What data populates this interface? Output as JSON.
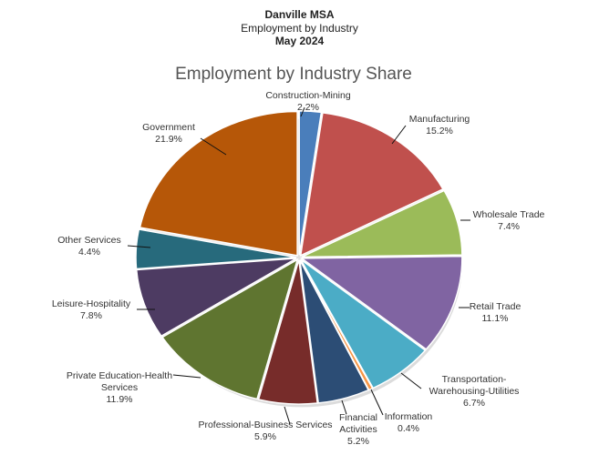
{
  "header": {
    "line1": "Danville MSA",
    "line2": "Employment by Industry",
    "line3": "May 2024"
  },
  "chart_data": {
    "type": "pie",
    "title": "Employment by Industry Share",
    "categories": [
      "Construction-Mining",
      "Manufacturing",
      "Wholesale Trade",
      "Retail Trade",
      "Transportation-Warehousing-Utilities",
      "Information",
      "Financial Activities",
      "Professional-Business Services",
      "Private Education-Health Services",
      "Leisure-Hospitality",
      "Other Services",
      "Government"
    ],
    "values": [
      2.2,
      15.2,
      7.4,
      11.1,
      6.7,
      0.4,
      5.2,
      5.9,
      11.9,
      7.8,
      4.4,
      21.9
    ],
    "value_labels": [
      "2.2%",
      "15.2%",
      "7.4%",
      "11.1%",
      "6.7%",
      "0.4%",
      "5.2%",
      "5.9%",
      "11.9%",
      "7.8%",
      "4.4%",
      "21.9%"
    ],
    "label_lines": [
      [
        "Construction-Mining"
      ],
      [
        "Manufacturing"
      ],
      [
        "Wholesale Trade"
      ],
      [
        "Retail Trade"
      ],
      [
        "Transportation-",
        "Warehousing-Utilities"
      ],
      [
        "Information"
      ],
      [
        "Financial",
        "Activities"
      ],
      [
        "Professional-Business Services"
      ],
      [
        "Private Education-Health",
        "Services"
      ],
      [
        "Leisure-Hospitality"
      ],
      [
        "Other Services"
      ],
      [
        "Government"
      ]
    ],
    "colors": [
      "#4a7ebb",
      "#c0504d",
      "#9bbb59",
      "#8064a2",
      "#4bacc6",
      "#f79646",
      "#2c4d75",
      "#772c2a",
      "#5f7530",
      "#4d3b62",
      "#276a7c",
      "#b65708"
    ],
    "legend": "none"
  }
}
